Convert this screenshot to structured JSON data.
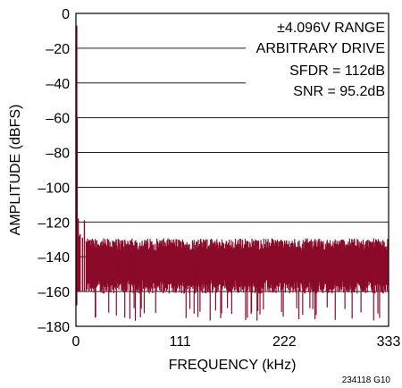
{
  "chart_data": {
    "type": "line",
    "xlabel": "FREQUENCY (kHz)",
    "ylabel": "AMPLITUDE (dBFS)",
    "xlim": [
      0,
      333
    ],
    "ylim": [
      -180,
      0
    ],
    "x_ticks": [
      "0",
      "111",
      "222",
      "333"
    ],
    "y_ticks": [
      "0",
      "–20",
      "–40",
      "–60",
      "–80",
      "–100",
      "–120",
      "–140",
      "–160",
      "–180"
    ],
    "y_tick_values": [
      0,
      -20,
      -40,
      -60,
      -80,
      -100,
      -120,
      -140,
      -160,
      -180
    ],
    "x_tick_values": [
      0,
      111,
      222,
      333
    ],
    "grid": "horizontal",
    "series_color": "#8b0a2a",
    "fundamental": {
      "x": 0.5,
      "y": -7
    },
    "spectrum_spurs": [
      {
        "x": 1.3,
        "y": -60
      },
      {
        "x": 2.5,
        "y": -118
      },
      {
        "x": 3.5,
        "y": -128
      },
      {
        "x": 4.5,
        "y": -127
      },
      {
        "x": 7,
        "y": -129
      },
      {
        "x": 9,
        "y": -119
      },
      {
        "x": 11,
        "y": -131
      }
    ],
    "noise_floor": {
      "x_start": 12,
      "x_end": 333,
      "upper_mean": -133,
      "lower_mean": -158,
      "min_dips": -177
    },
    "annotations": [
      "±4.096V RANGE",
      "ARBITRARY DRIVE",
      "SFDR = 112dB",
      "SNR = 95.2dB"
    ]
  },
  "figure_id": "234118 G10"
}
